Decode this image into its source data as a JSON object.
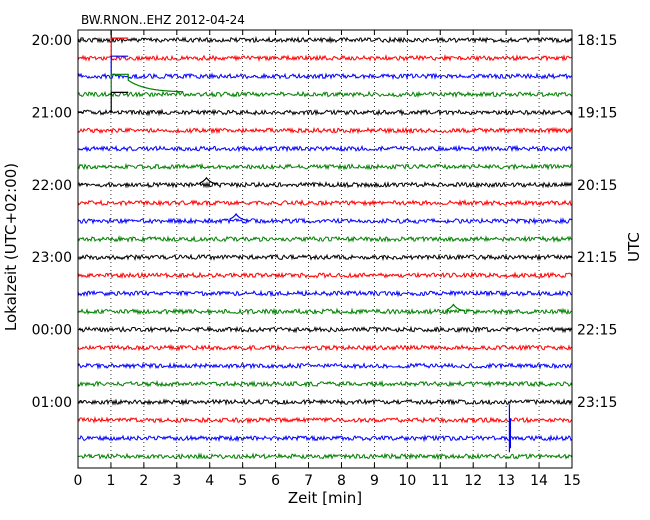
{
  "chart_data": {
    "type": "line",
    "title": "BW.RNON..EHZ 2012-04-24",
    "xlabel": "Zeit  [min]",
    "ylabel_left": "Lokalzeit (UTC+02:00)",
    "ylabel_right": "UTC",
    "xlim": [
      0,
      15
    ],
    "x_ticks": [
      0,
      1,
      2,
      3,
      4,
      5,
      6,
      7,
      8,
      9,
      10,
      11,
      12,
      13,
      14,
      15
    ],
    "grid": "vertical dotted",
    "trace_interval_min": 15,
    "trace_colors": [
      "#000000",
      "#ff0000",
      "#0000ff",
      "#008000"
    ],
    "left_ticks": [
      "20:00",
      "21:00",
      "22:00",
      "23:00",
      "00:00",
      "01:00"
    ],
    "right_ticks": [
      "18:15",
      "19:15",
      "20:15",
      "21:15",
      "22:15",
      "23:15"
    ],
    "tick_every_n_traces": 4,
    "trace_count": 24,
    "events": [
      {
        "trace": 0,
        "minute": 1.1,
        "amplitude": "clipped"
      },
      {
        "trace": 1,
        "minute": 1.1,
        "amplitude": "clipped"
      },
      {
        "trace": 2,
        "minute": 1.1,
        "amplitude": "clipped"
      },
      {
        "trace": 3,
        "minute": 1.1,
        "amplitude": "clipped",
        "coda_end_minute": 3.2
      },
      {
        "trace": 4,
        "minute": 1.1,
        "amplitude": "clipped"
      },
      {
        "trace": 8,
        "minute": 3.9,
        "amplitude": "small"
      },
      {
        "trace": 10,
        "minute": 4.8,
        "amplitude": "small"
      },
      {
        "trace": 15,
        "minute": 11.4,
        "amplitude": "small"
      },
      {
        "trace": 22,
        "minute": 13.1,
        "amplitude": "spike"
      }
    ]
  }
}
